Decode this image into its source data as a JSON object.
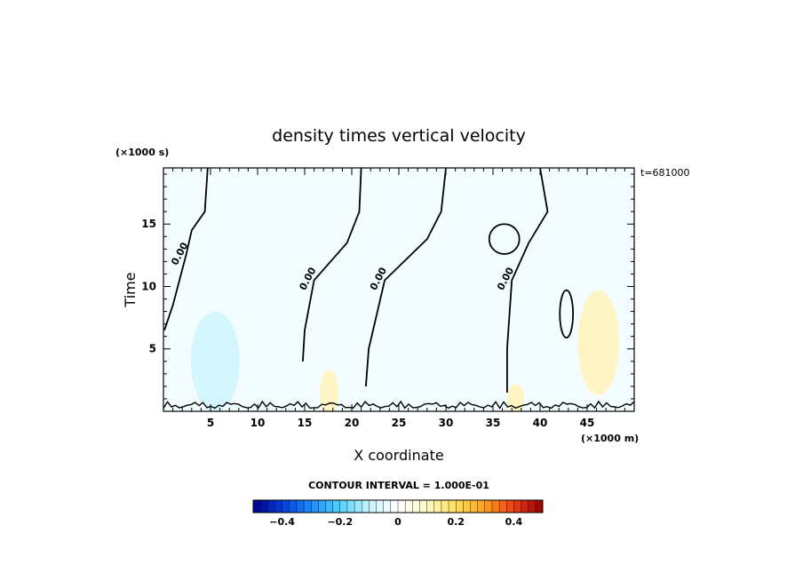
{
  "chart_data": {
    "type": "contour",
    "title": "density times vertical velocity",
    "xlabel": "X coordinate",
    "ylabel": "Time",
    "x_unit": "(×1000 m)",
    "y_unit": "(×1000 s)",
    "time_stamp": "t=681000",
    "xlim": [
      0,
      50
    ],
    "ylim": [
      0,
      19.5
    ],
    "x_ticks": [
      5,
      10,
      15,
      20,
      25,
      30,
      35,
      40,
      45
    ],
    "y_ticks": [
      5,
      10,
      15
    ],
    "contour_label": "0.00",
    "contour_interval_text": "CONTOUR INTERVAL = 1.000E-01",
    "colorbar": {
      "range": [
        -0.5,
        0.5
      ],
      "tick_values": [
        -0.4,
        -0.2,
        0,
        0.2,
        0.4
      ],
      "tick_labels": [
        "−0.4",
        "−0.2",
        "0",
        "0.2",
        "0.4"
      ]
    },
    "zero_contours": [
      [
        [
          4.7,
          19.5
        ],
        [
          4.4,
          16
        ],
        [
          3.0,
          14.5
        ],
        [
          2.4,
          12.5
        ],
        [
          1.0,
          8.5
        ],
        [
          0.1,
          6.5
        ]
      ],
      [
        [
          21,
          19.5
        ],
        [
          20.8,
          16
        ],
        [
          19.5,
          13.5
        ],
        [
          16.0,
          10.5
        ],
        [
          15.0,
          6.5
        ],
        [
          14.8,
          4
        ]
      ],
      [
        [
          30,
          19.5
        ],
        [
          29.5,
          16
        ],
        [
          28.0,
          13.8
        ],
        [
          23.5,
          10.5
        ],
        [
          21.8,
          5
        ],
        [
          21.5,
          2
        ]
      ],
      [
        [
          40,
          19.5
        ],
        [
          40.8,
          16
        ],
        [
          38.8,
          13.5
        ],
        [
          37.0,
          10.5
        ],
        [
          36.5,
          5
        ],
        [
          36.5,
          1.5
        ]
      ]
    ],
    "closed_zero_contours": [
      {
        "x": 36.2,
        "y": 13.8,
        "rx": 1.6,
        "ry": 1.2
      },
      {
        "x": 42.8,
        "y": 7.8,
        "rx": 0.7,
        "ry": 1.9
      }
    ],
    "shaded_regions": [
      {
        "x": 5.5,
        "y": 4,
        "rx": 2.6,
        "ry": 4,
        "value": -0.1
      },
      {
        "x": 46.2,
        "y": 5.5,
        "rx": 2.2,
        "ry": 4.2,
        "value": 0.1
      },
      {
        "x": 17.6,
        "y": 1.5,
        "rx": 1.0,
        "ry": 1.8,
        "value": 0.1
      },
      {
        "x": 37.4,
        "y": 1.0,
        "rx": 0.9,
        "ry": 1.2,
        "value": 0.1
      }
    ]
  }
}
